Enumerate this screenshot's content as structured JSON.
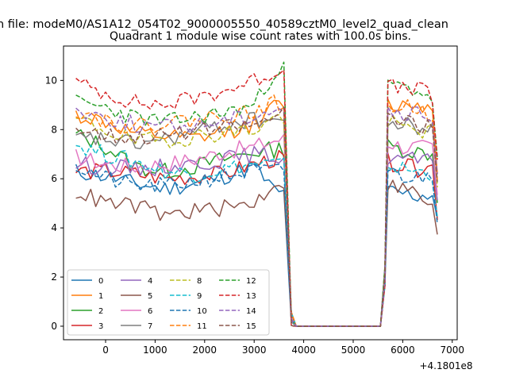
{
  "figure": {
    "suptitle": "n file: modeM0/AS1A12_054T02_9000005550_40589cztM0_level2_quad_clean"
  },
  "chart_data": {
    "type": "line",
    "title": "Quadrant 1 module wise count rates with 100.0s bins.",
    "xlabel": "",
    "ylabel": "",
    "x_offset_label": "+4.1801e8",
    "xlim": [
      -850,
      7100
    ],
    "ylim": [
      -0.55,
      11.4
    ],
    "x_ticks": [
      0,
      1000,
      2000,
      3000,
      4000,
      5000,
      6000,
      7000
    ],
    "x_tick_labels": [
      "0",
      "1000",
      "2000",
      "3000",
      "4000",
      "5000",
      "6000",
      "7000"
    ],
    "y_ticks": [
      0,
      2,
      4,
      6,
      8,
      10
    ],
    "y_tick_labels": [
      "0",
      "2",
      "4",
      "6",
      "8",
      "10"
    ],
    "grid": false,
    "legend_position": "lower-left",
    "legend_columns": 4,
    "series": [
      {
        "name": "0",
        "color": "#1f77b4",
        "dash": "solid",
        "seed": 11,
        "base": [
          6.3,
          6.1,
          5.8,
          5.6,
          5.8,
          6.1,
          6.5,
          5.4,
          5.5,
          5.4,
          5.3,
          5.4,
          4.4
        ]
      },
      {
        "name": "1",
        "color": "#ff7f0e",
        "dash": "solid",
        "seed": 12,
        "base": [
          8.6,
          8.3,
          7.8,
          7.7,
          7.6,
          7.9,
          8.2,
          9.0,
          9.0,
          9.0,
          9.1,
          8.8,
          6.3
        ]
      },
      {
        "name": "2",
        "color": "#2ca02c",
        "dash": "solid",
        "seed": 13,
        "base": [
          7.8,
          7.3,
          6.5,
          6.3,
          6.5,
          6.8,
          7.1,
          7.2,
          7.3,
          7.2,
          7.1,
          7.0,
          5.2
        ]
      },
      {
        "name": "3",
        "color": "#d62728",
        "dash": "solid",
        "seed": 14,
        "base": [
          6.3,
          6.3,
          6.2,
          6.0,
          6.1,
          6.2,
          6.6,
          6.8,
          6.7,
          6.5,
          6.4,
          6.5,
          4.6
        ]
      },
      {
        "name": "4",
        "color": "#9467bd",
        "dash": "solid",
        "seed": 15,
        "base": [
          6.6,
          6.5,
          6.4,
          6.5,
          6.6,
          6.8,
          7.0,
          6.9,
          6.9,
          6.8,
          6.8,
          6.6,
          4.8
        ]
      },
      {
        "name": "5",
        "color": "#8c564b",
        "dash": "solid",
        "seed": 16,
        "base": [
          5.5,
          5.0,
          4.9,
          4.5,
          4.7,
          4.8,
          5.0,
          5.9,
          5.8,
          5.6,
          5.4,
          4.8,
          3.5
        ]
      },
      {
        "name": "6",
        "color": "#e377c2",
        "dash": "solid",
        "seed": 17,
        "base": [
          6.9,
          6.6,
          6.5,
          6.6,
          6.8,
          7.1,
          7.3,
          7.6,
          7.5,
          7.3,
          7.3,
          7.2,
          5.2
        ]
      },
      {
        "name": "7",
        "color": "#7f7f7f",
        "dash": "solid",
        "seed": 18,
        "base": [
          7.6,
          7.6,
          7.4,
          7.6,
          7.9,
          8.2,
          8.4,
          8.4,
          8.3,
          8.2,
          8.1,
          8.0,
          5.8
        ]
      },
      {
        "name": "8",
        "color": "#bcbd22",
        "dash": "dashed",
        "seed": 19,
        "base": [
          8.4,
          8.0,
          7.5,
          7.6,
          7.7,
          7.9,
          8.0,
          8.5,
          8.3,
          8.1,
          8.0,
          7.9,
          5.7
        ]
      },
      {
        "name": "9",
        "color": "#17becf",
        "dash": "dashed",
        "seed": 20,
        "base": [
          7.4,
          7.0,
          6.7,
          6.3,
          6.2,
          6.4,
          6.6,
          6.6,
          6.5,
          6.4,
          6.3,
          6.2,
          4.6
        ]
      },
      {
        "name": "10",
        "color": "#1f77b4",
        "dash": "dashed",
        "seed": 21,
        "base": [
          6.5,
          6.0,
          5.7,
          5.7,
          5.9,
          6.1,
          6.3,
          6.3,
          6.3,
          6.1,
          6.0,
          6.2,
          4.4
        ]
      },
      {
        "name": "11",
        "color": "#ff7f0e",
        "dash": "dashed",
        "seed": 22,
        "base": [
          8.8,
          8.4,
          8.1,
          8.3,
          8.4,
          8.6,
          8.7,
          9.1,
          9.0,
          8.9,
          8.9,
          8.6,
          6.3
        ]
      },
      {
        "name": "12",
        "color": "#2ca02c",
        "dash": "dashed",
        "seed": 23,
        "base": [
          9.1,
          8.9,
          8.5,
          8.3,
          8.5,
          8.7,
          9.0,
          10.5,
          9.9,
          9.7,
          9.6,
          9.3,
          6.6
        ]
      },
      {
        "name": "13",
        "color": "#d62728",
        "dash": "dashed",
        "seed": 24,
        "base": [
          9.9,
          9.5,
          9.1,
          9.0,
          9.3,
          9.6,
          10.0,
          10.4,
          9.8,
          9.6,
          9.8,
          9.2,
          6.6
        ]
      },
      {
        "name": "14",
        "color": "#9467bd",
        "dash": "dashed",
        "seed": 25,
        "base": [
          8.8,
          8.5,
          8.2,
          8.1,
          8.2,
          8.4,
          8.6,
          8.9,
          8.7,
          8.6,
          8.6,
          8.4,
          6.1
        ]
      },
      {
        "name": "15",
        "color": "#8c564b",
        "dash": "dashed",
        "seed": 26,
        "base": [
          8.1,
          7.8,
          7.7,
          7.8,
          7.9,
          8.1,
          8.2,
          8.6,
          8.4,
          8.3,
          8.2,
          8.1,
          5.9
        ]
      }
    ],
    "time_grid": {
      "anchors_x": [
        -600,
        0,
        600,
        1200,
        1800,
        2400,
        3000,
        3450,
        5700,
        6000,
        6300,
        6600,
        6700
      ],
      "seg1": {
        "start": -600,
        "end": 3600,
        "step": 100
      },
      "seg2": {
        "start": 5700,
        "end": 6700,
        "step": 100
      },
      "drop_x": 3750,
      "zero_x": [
        3850,
        5550
      ],
      "rise_x": 5640,
      "noise": 0.35
    }
  }
}
